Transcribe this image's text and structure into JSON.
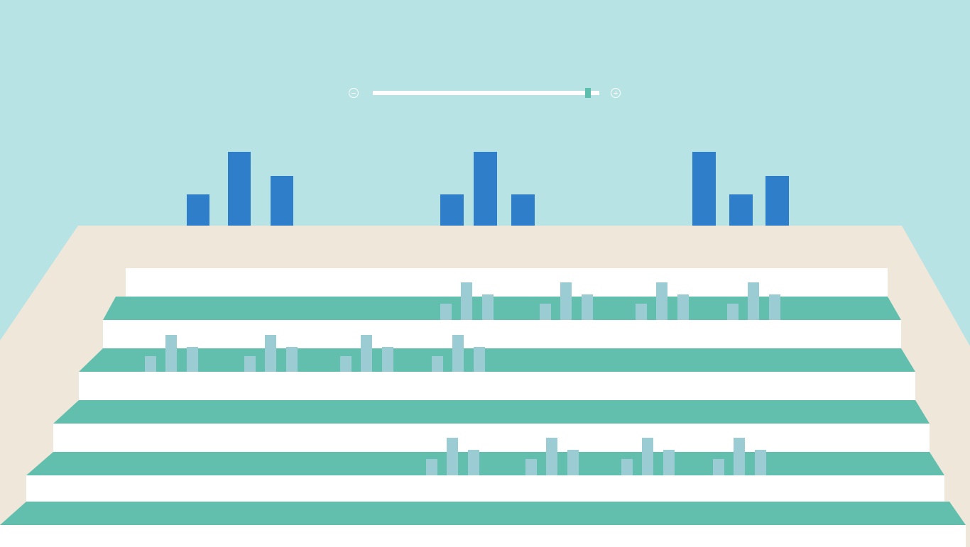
{
  "zoom": {
    "level": 0.95,
    "minus_icon": "zoom-out-icon",
    "plus_icon": "zoom-in-icon"
  },
  "colors": {
    "sky": "#B8E3E4",
    "wall": "#EFE7DA",
    "step_top": "#62BFAE",
    "step_riser": "#FFFFFF",
    "building": "#2F7EC9",
    "ghost_building": "#9BCCD3",
    "zoom_handle": "#5FBFAE"
  },
  "skyline": {
    "groups": [
      {
        "heights": [
          2,
          5,
          3.5
        ]
      },
      {
        "heights": [
          2,
          5,
          2
        ]
      },
      {
        "heights": [
          5,
          2,
          3.5
        ]
      }
    ]
  },
  "stairs": {
    "step_count": 5,
    "ghost_rows": [
      {
        "step": 0,
        "offset": "right",
        "clusters": 4,
        "heights": [
          1,
          2.5,
          1.7
        ]
      },
      {
        "step": 1,
        "offset": "left",
        "clusters": 4,
        "heights": [
          1,
          2.5,
          1.7
        ]
      },
      {
        "step": 3,
        "offset": "right",
        "clusters": 4,
        "heights": [
          1,
          2.5,
          1.7
        ]
      }
    ]
  }
}
